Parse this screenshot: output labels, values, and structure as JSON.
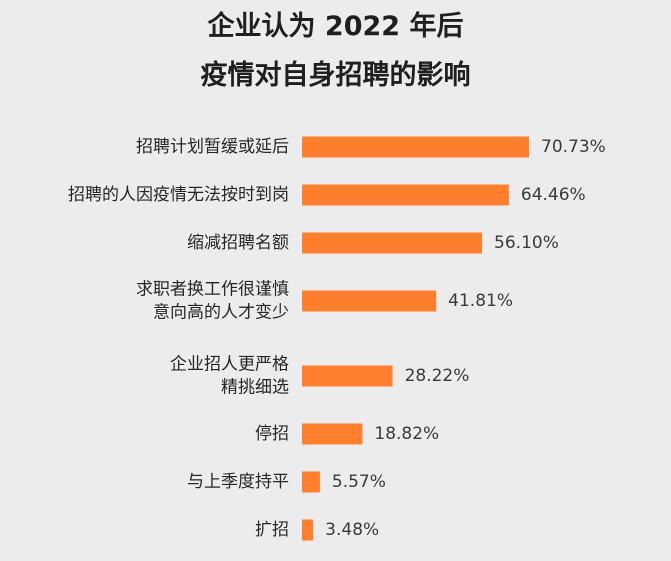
{
  "chart_data": {
    "type": "bar",
    "orientation": "horizontal",
    "title_lines": [
      "企业认为 2022 年后",
      "疫情对自身招聘的影响"
    ],
    "categories": [
      [
        "招聘计划暂缓或延后"
      ],
      [
        "招聘的人因疫情无法按时到岗"
      ],
      [
        "缩减招聘名额"
      ],
      [
        "求职者换工作很谨慎",
        "意向高的人才变少"
      ],
      [
        "企业招人更严格",
        "精挑细选"
      ],
      [
        "停招"
      ],
      [
        "与上季度持平"
      ],
      [
        "扩招"
      ]
    ],
    "values": [
      70.73,
      64.46,
      56.1,
      41.81,
      28.22,
      18.82,
      5.57,
      3.48
    ],
    "value_labels": [
      "70.73%",
      "64.46%",
      "56.10%",
      "41.81%",
      "28.22%",
      "18.82%",
      "5.57%",
      "3.48%"
    ],
    "unit": "%",
    "bar_color": "#ff7f2f",
    "grid": false,
    "legend": false
  }
}
